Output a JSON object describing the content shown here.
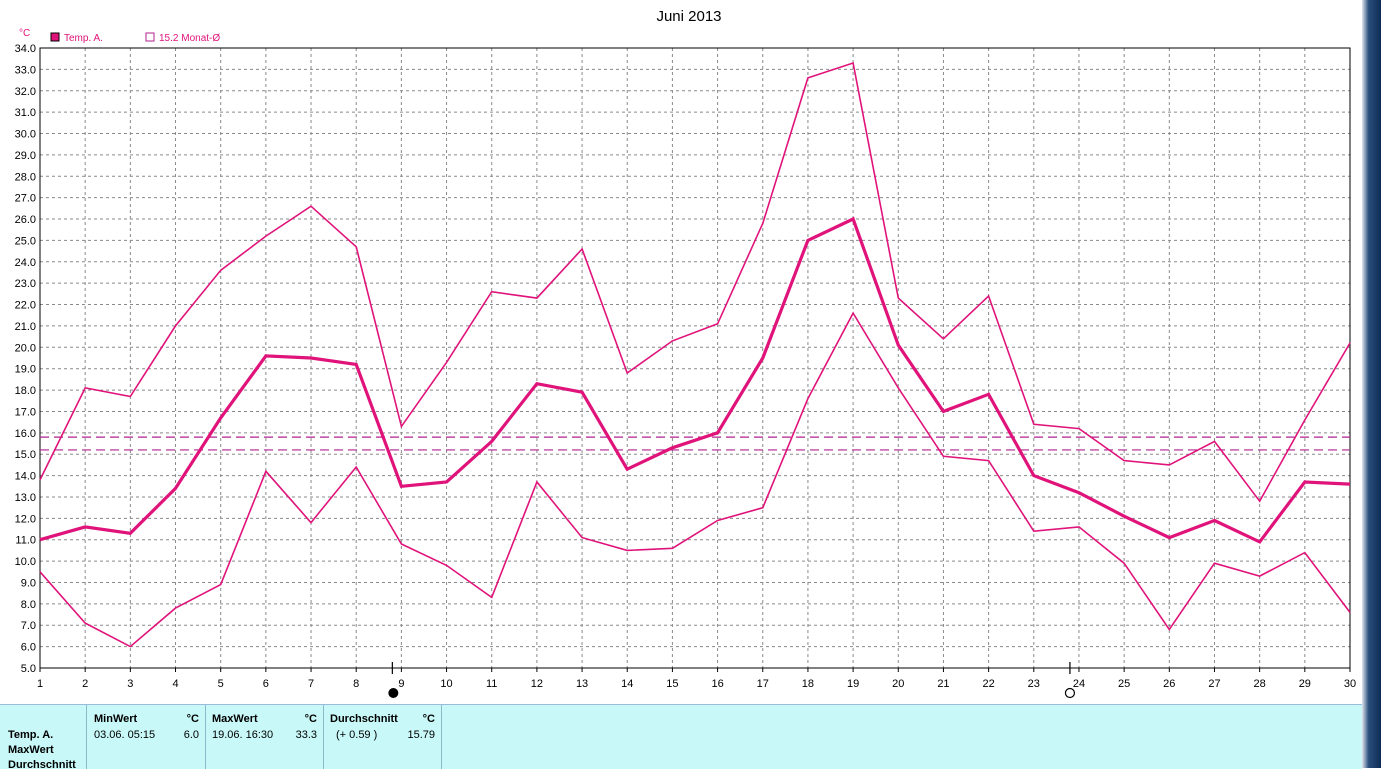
{
  "chart_data": {
    "type": "line",
    "title": "Juni 2013",
    "unit": "°C",
    "x": [
      1,
      2,
      3,
      4,
      5,
      6,
      7,
      8,
      9,
      10,
      11,
      12,
      13,
      14,
      15,
      16,
      17,
      18,
      19,
      20,
      21,
      22,
      23,
      24,
      25,
      26,
      27,
      28,
      29,
      30
    ],
    "xlim": [
      1,
      30
    ],
    "ylim": [
      5.0,
      34.0
    ],
    "yticks": [
      "5.0",
      "6.0",
      "7.0",
      "8.0",
      "9.0",
      "10.0",
      "11.0",
      "12.0",
      "13.0",
      "14.0",
      "15.0",
      "16.0",
      "17.0",
      "18.0",
      "19.0",
      "20.0",
      "21.0",
      "22.0",
      "23.0",
      "24.0",
      "25.0",
      "26.0",
      "27.0",
      "28.0",
      "29.0",
      "30.0",
      "31.0",
      "32.0",
      "33.0",
      "34.0"
    ],
    "grid": true,
    "legend_placement": "top-left",
    "legend": [
      {
        "label": "Temp. A.",
        "marker": "filled-square"
      },
      {
        "label": "15.2 Monat-Ø",
        "marker": "open-square"
      }
    ],
    "series": [
      {
        "name": "Temp. A.",
        "role": "max",
        "width": 1.6,
        "values": [
          13.8,
          18.1,
          17.7,
          21.0,
          23.6,
          25.2,
          26.6,
          24.7,
          16.3,
          19.3,
          22.6,
          22.3,
          24.6,
          18.8,
          20.3,
          21.1,
          25.8,
          32.6,
          33.3,
          22.3,
          20.4,
          22.4,
          16.4,
          16.2,
          14.7,
          14.5,
          15.6,
          12.8,
          16.6,
          20.2
        ]
      },
      {
        "name": "Temp. A.",
        "role": "mean",
        "width": 3.2,
        "values": [
          11.0,
          11.6,
          11.3,
          13.4,
          16.7,
          19.6,
          19.5,
          19.2,
          13.5,
          13.7,
          15.6,
          18.3,
          17.9,
          14.3,
          15.3,
          16.0,
          19.5,
          25.0,
          26.0,
          20.1,
          17.0,
          17.8,
          14.0,
          13.2,
          12.1,
          11.1,
          11.9,
          10.9,
          13.7,
          13.6
        ]
      },
      {
        "name": "Temp. A.",
        "role": "min",
        "width": 1.6,
        "values": [
          9.5,
          7.1,
          6.0,
          7.8,
          8.9,
          14.2,
          11.8,
          14.4,
          10.8,
          9.8,
          8.3,
          13.7,
          11.1,
          10.5,
          10.6,
          11.9,
          12.5,
          17.6,
          21.6,
          18.1,
          14.9,
          14.7,
          11.4,
          11.6,
          9.9,
          6.8,
          9.9,
          9.3,
          10.4,
          7.6
        ]
      }
    ],
    "reference_lines": [
      15.2,
      15.8
    ],
    "markers": [
      {
        "x": 8.8,
        "symbol": "filled-circle"
      },
      {
        "x": 23.8,
        "symbol": "open-circle"
      }
    ],
    "colors": {
      "series": "#e0137a",
      "reference": "#b0208f",
      "grid": "#8a8a8a"
    }
  },
  "stats": {
    "row_labels": [
      "Temp. A.",
      "MaxWert",
      "Durchschnitt"
    ],
    "min": {
      "header": "MinWert",
      "unit": "°C",
      "datetime": "03.06.  05:15",
      "value": "6.0"
    },
    "max": {
      "header": "MaxWert",
      "unit": "°C",
      "datetime": "19.06.  16:30",
      "value": "33.3"
    },
    "avg": {
      "header": "Durchschnitt",
      "unit": "°C",
      "delta": "(+ 0.59 )",
      "value": "15.79"
    }
  }
}
